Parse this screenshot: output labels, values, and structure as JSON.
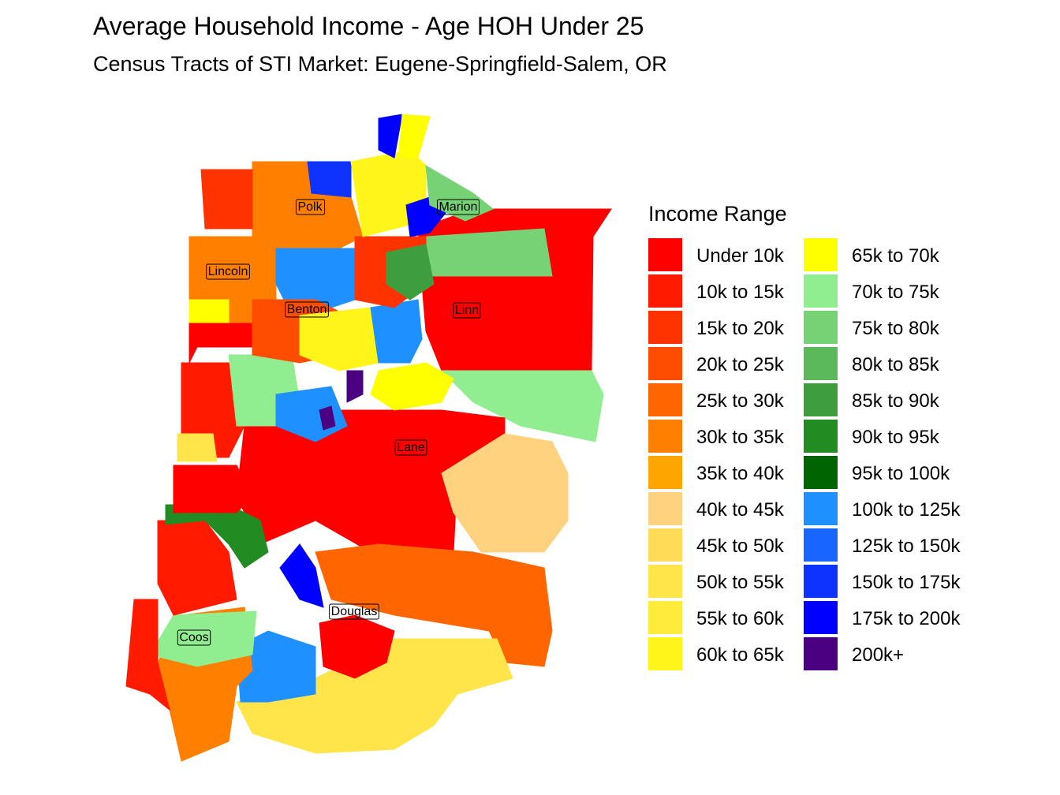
{
  "title": "Average Household Income - Age HOH Under 25",
  "subtitle": "Census Tracts of STI Market: Eugene-Springfield-Salem, OR",
  "map": {
    "labels": [
      "Polk",
      "Marion",
      "Lincoln",
      "Benton",
      "Linn",
      "Lane",
      "Douglas",
      "Coos"
    ]
  },
  "legend": {
    "title": "Income Range",
    "items": [
      {
        "label": "Under 10k",
        "color": "#FF0000"
      },
      {
        "label": "10k to 15k",
        "color": "#FF1A00"
      },
      {
        "label": "15k to 20k",
        "color": "#FF3300"
      },
      {
        "label": "20k to 25k",
        "color": "#FF4D00"
      },
      {
        "label": "25k to 30k",
        "color": "#FF6600"
      },
      {
        "label": "30k to 35k",
        "color": "#FF8000"
      },
      {
        "label": "35k to 40k",
        "color": "#FFA500"
      },
      {
        "label": "40k to 45k",
        "color": "#FFD27F"
      },
      {
        "label": "45k to 50k",
        "color": "#FFDB58"
      },
      {
        "label": "50k to 55k",
        "color": "#FFE44A"
      },
      {
        "label": "55k to 60k",
        "color": "#FFEB3B"
      },
      {
        "label": "60k to 65k",
        "color": "#FFF51A"
      },
      {
        "label": "65k to 70k",
        "color": "#FFFF00"
      },
      {
        "label": "70k to 75k",
        "color": "#90EE90"
      },
      {
        "label": "75k to 80k",
        "color": "#76D275"
      },
      {
        "label": "80k to 85k",
        "color": "#5BB85B"
      },
      {
        "label": "85k to 90k",
        "color": "#3E9E3E"
      },
      {
        "label": "90k to 95k",
        "color": "#228B22"
      },
      {
        "label": "95k to 100k",
        "color": "#006400"
      },
      {
        "label": "100k to 125k",
        "color": "#1E90FF"
      },
      {
        "label": "125k to 150k",
        "color": "#1866FF"
      },
      {
        "label": "150k to 175k",
        "color": "#0F33FF"
      },
      {
        "label": "175k to 200k",
        "color": "#0000FF"
      },
      {
        "label": "200k+",
        "color": "#4B0082"
      }
    ]
  }
}
